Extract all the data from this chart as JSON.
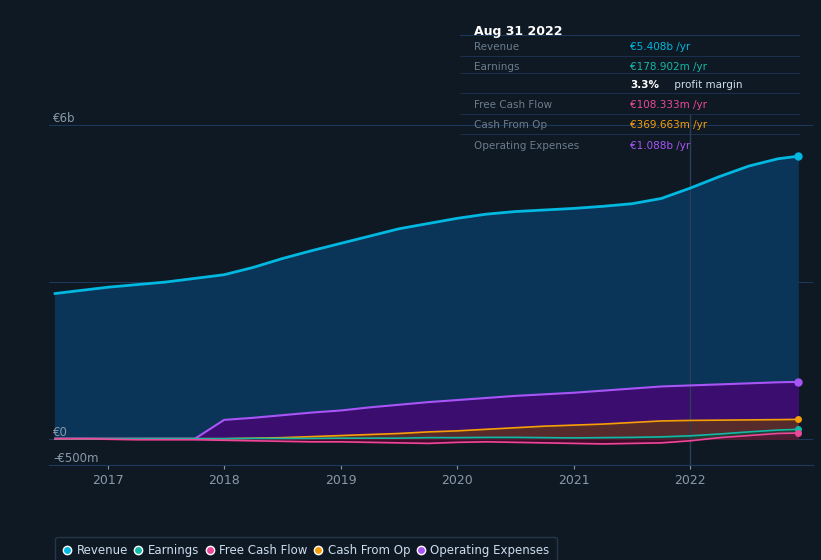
{
  "bg_color": "#0f1923",
  "plot_bg_color": "#0f1923",
  "grid_color": "#1a2d42",
  "x_years": [
    2016.55,
    2016.7,
    2016.85,
    2017.0,
    2017.25,
    2017.5,
    2017.75,
    2018.0,
    2018.25,
    2018.5,
    2018.75,
    2019.0,
    2019.25,
    2019.5,
    2019.75,
    2020.0,
    2020.25,
    2020.5,
    2020.75,
    2021.0,
    2021.25,
    2021.5,
    2021.75,
    2022.0,
    2022.25,
    2022.5,
    2022.75,
    2022.92
  ],
  "revenue": [
    2.78,
    2.82,
    2.86,
    2.9,
    2.95,
    3.0,
    3.07,
    3.14,
    3.28,
    3.45,
    3.6,
    3.74,
    3.88,
    4.02,
    4.12,
    4.22,
    4.3,
    4.35,
    4.38,
    4.41,
    4.45,
    4.5,
    4.6,
    4.8,
    5.02,
    5.22,
    5.36,
    5.408
  ],
  "op_expenses": [
    0.0,
    0.0,
    0.0,
    0.0,
    0.0,
    0.0,
    0.0,
    0.36,
    0.4,
    0.45,
    0.5,
    0.54,
    0.6,
    0.65,
    0.7,
    0.74,
    0.78,
    0.82,
    0.85,
    0.88,
    0.92,
    0.96,
    1.0,
    1.02,
    1.04,
    1.06,
    1.08,
    1.088
  ],
  "cash_from_op": [
    0.0,
    0.0,
    0.0,
    0.0,
    0.0,
    0.0,
    0.0,
    0.0,
    0.01,
    0.02,
    0.04,
    0.06,
    0.08,
    0.1,
    0.13,
    0.15,
    0.18,
    0.21,
    0.24,
    0.26,
    0.28,
    0.31,
    0.34,
    0.35,
    0.355,
    0.36,
    0.365,
    0.3697
  ],
  "free_cash_flow": [
    0.0,
    0.0,
    0.0,
    -0.01,
    -0.02,
    -0.02,
    -0.02,
    -0.03,
    -0.04,
    -0.05,
    -0.06,
    -0.06,
    -0.07,
    -0.08,
    -0.09,
    -0.07,
    -0.06,
    -0.07,
    -0.08,
    -0.09,
    -0.1,
    -0.09,
    -0.08,
    -0.04,
    0.02,
    0.06,
    0.1,
    0.1083
  ],
  "earnings": [
    0.0,
    0.0,
    0.0,
    0.0,
    0.0,
    0.0,
    0.0,
    0.0,
    0.005,
    0.005,
    0.005,
    0.01,
    0.01,
    0.01,
    0.02,
    0.02,
    0.025,
    0.025,
    0.02,
    0.015,
    0.02,
    0.025,
    0.035,
    0.055,
    0.09,
    0.13,
    0.165,
    0.1789
  ],
  "revenue_color": "#00b8e0",
  "op_exp_color": "#a855f7",
  "cash_op_color": "#f59e0b",
  "fcf_color": "#ec4899",
  "earnings_color": "#14b8a6",
  "revenue_fill": "#0a3558",
  "op_exp_fill": "#3b0d6e",
  "ylim": [
    -0.5,
    6.2
  ],
  "xlim": [
    2016.5,
    2023.05
  ],
  "xticks": [
    2017,
    2018,
    2019,
    2020,
    2021,
    2022
  ],
  "vline_x": 2022.0,
  "legend_items": [
    {
      "label": "Revenue",
      "color": "#00b8e0"
    },
    {
      "label": "Earnings",
      "color": "#14b8a6"
    },
    {
      "label": "Free Cash Flow",
      "color": "#ec4899"
    },
    {
      "label": "Cash From Op",
      "color": "#f59e0b"
    },
    {
      "label": "Operating Expenses",
      "color": "#a855f7"
    }
  ],
  "infobox": {
    "date": "Aug 31 2022",
    "rows": [
      {
        "label": "Revenue",
        "value": "€5.408b",
        "suffix": " /yr",
        "value_color": "#00b8e0"
      },
      {
        "label": "Earnings",
        "value": "€178.902m",
        "suffix": " /yr",
        "value_color": "#14b8a6"
      },
      {
        "label": "",
        "value": "3.3%",
        "suffix": " profit margin",
        "value_color": "#ffffff",
        "bold": true
      },
      {
        "label": "Free Cash Flow",
        "value": "€108.333m",
        "suffix": " /yr",
        "value_color": "#ec4899"
      },
      {
        "label": "Cash From Op",
        "value": "€369.663m",
        "suffix": " /yr",
        "value_color": "#f59e0b"
      },
      {
        "label": "Operating Expenses",
        "value": "€1.088b",
        "suffix": " /yr",
        "value_color": "#a855f7"
      }
    ]
  }
}
